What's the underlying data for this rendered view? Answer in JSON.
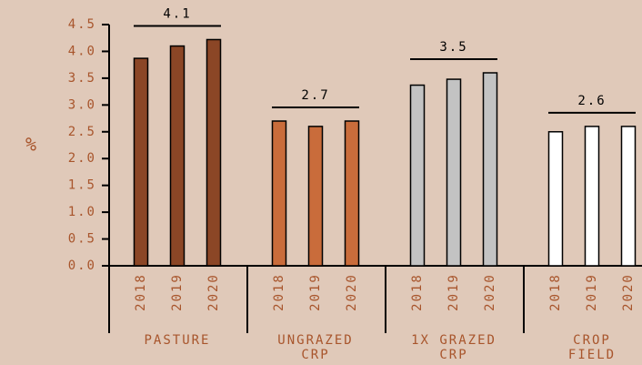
{
  "chart_data": {
    "type": "grouped_bar",
    "ylabel": "%",
    "ylim": [
      0,
      4.5
    ],
    "yticks": [
      {
        "value": 0,
        "label": "0.0"
      },
      0.5,
      {
        "value": 1,
        "label": "1.0"
      },
      1.5,
      {
        "value": 2,
        "label": "2.0"
      },
      2.5,
      {
        "value": 3,
        "label": "3.0"
      },
      3.5,
      {
        "value": 4,
        "label": "4.0"
      },
      4.5
    ],
    "groups": [
      {
        "label": [
          "PASTURE"
        ],
        "color": "#8b4626",
        "categories": [
          "2018",
          "2019",
          "2020"
        ],
        "values": [
          3.87,
          4.1,
          4.22
        ],
        "mean_label": "4.1"
      },
      {
        "label": [
          "UNGRAZED",
          "CRP"
        ],
        "color": "#c96c3b",
        "categories": [
          "2018",
          "2019",
          "2020"
        ],
        "values": [
          2.7,
          2.6,
          2.7
        ],
        "mean_label": "2.7"
      },
      {
        "label": [
          "1X GRAZED",
          "CRP"
        ],
        "color": "#c3c3c3",
        "categories": [
          "2018",
          "2019",
          "2020"
        ],
        "values": [
          3.37,
          3.48,
          3.6
        ],
        "mean_label": "3.5"
      },
      {
        "label": [
          "CROP",
          "FIELD"
        ],
        "color": "#ffffff",
        "categories": [
          "2018",
          "2019",
          "2020"
        ],
        "values": [
          2.5,
          2.6,
          2.6
        ],
        "mean_label": "2.6"
      }
    ]
  }
}
